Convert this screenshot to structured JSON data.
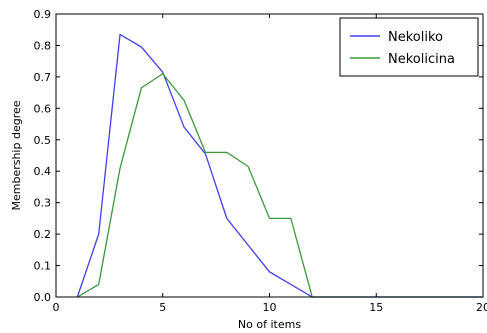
{
  "chart_data": {
    "type": "line",
    "title": "",
    "xlabel": "No of items",
    "ylabel": "Membership degree",
    "xlim": [
      0,
      20
    ],
    "ylim": [
      0,
      0.9
    ],
    "xticks": [
      0,
      5,
      10,
      15,
      20
    ],
    "yticks": [
      0.0,
      0.1,
      0.2,
      0.3,
      0.4,
      0.5,
      0.6,
      0.7,
      0.8,
      0.9
    ],
    "grid": false,
    "legend_position": "top-right",
    "series": [
      {
        "name": "Nekoliko",
        "color": "#4040ee",
        "x": [
          1,
          2,
          3,
          4,
          5,
          6,
          7,
          8,
          9,
          10,
          11,
          12,
          13,
          14,
          15,
          16,
          17,
          18,
          19,
          20
        ],
        "y": [
          0.0,
          0.2,
          0.835,
          0.795,
          0.715,
          0.54,
          0.455,
          0.25,
          0.165,
          0.08,
          0.04,
          0.0,
          0.0,
          0.0,
          0.0,
          0.0,
          0.0,
          0.0,
          0.0,
          0.0
        ]
      },
      {
        "name": "Nekolicina",
        "color": "#3a9a3a",
        "x": [
          1,
          2,
          3,
          4,
          5,
          6,
          7,
          8,
          9,
          10,
          11,
          12,
          13,
          14,
          15,
          16,
          17,
          18,
          19,
          20
        ],
        "y": [
          0.0,
          0.04,
          0.41,
          0.665,
          0.71,
          0.625,
          0.46,
          0.46,
          0.415,
          0.25,
          0.25,
          0.0,
          0.0,
          0.0,
          0.0,
          0.0,
          0.0,
          0.0,
          0.0,
          0.0
        ]
      }
    ]
  }
}
